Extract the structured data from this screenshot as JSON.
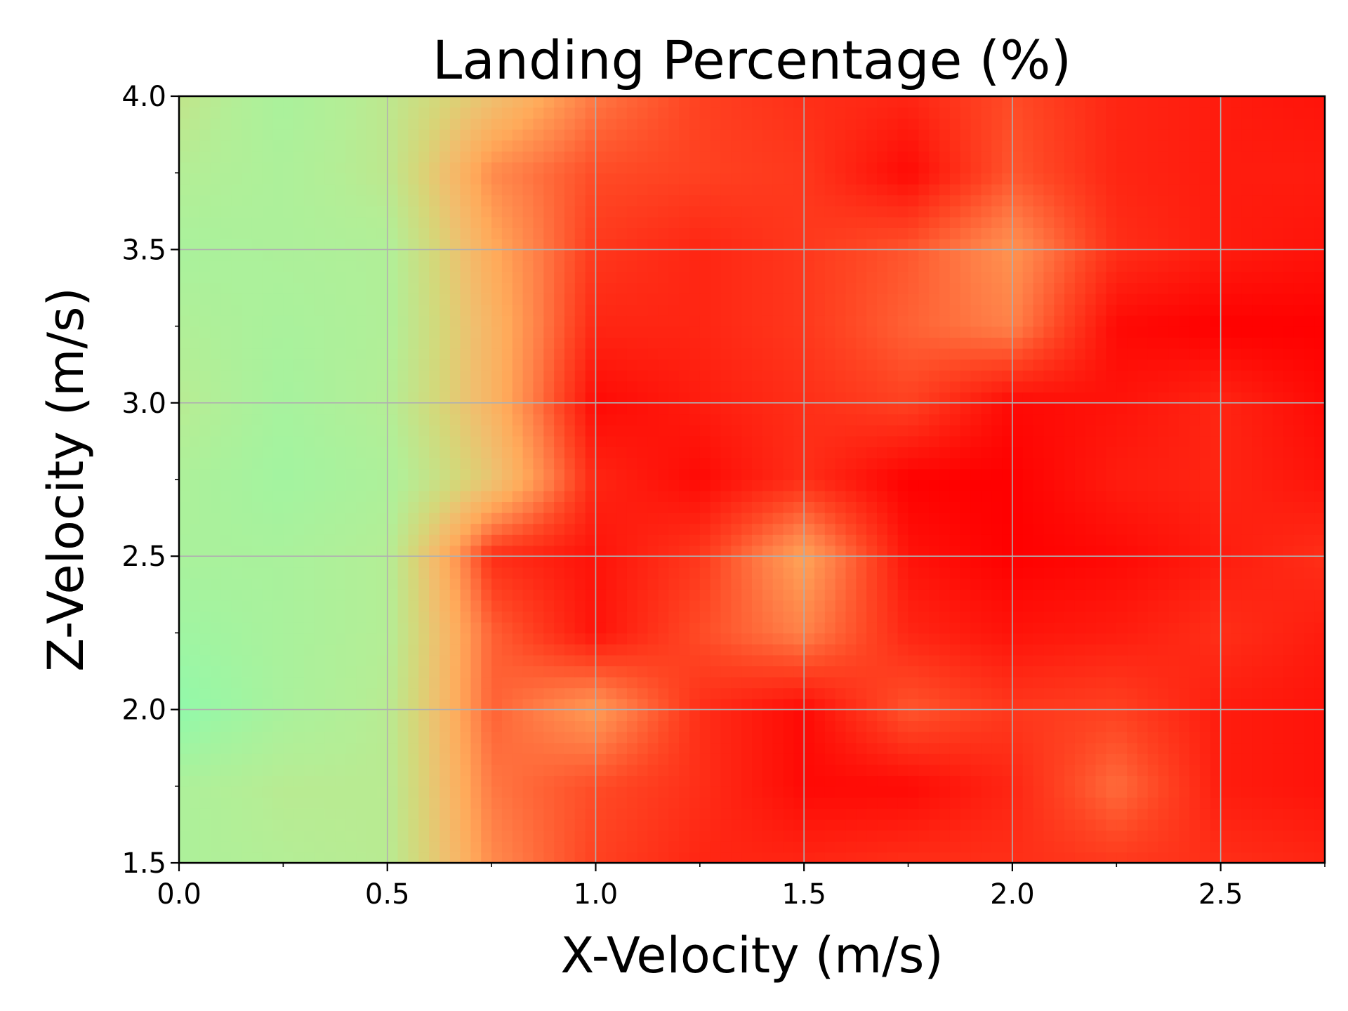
{
  "chart_data": {
    "type": "heatmap",
    "title": "Landing Percentage (%)",
    "xlabel": "X-Velocity (m/s)",
    "ylabel": "Z-Velocity (m/s)",
    "xlim": [
      0.0,
      2.75
    ],
    "ylim": [
      1.5,
      4.0
    ],
    "x_ticks": [
      "0.0",
      "0.5",
      "1.0",
      "1.5",
      "2.0",
      "2.5"
    ],
    "y_ticks": [
      "1.5",
      "2.0",
      "2.5",
      "3.0",
      "3.5",
      "4.0"
    ],
    "x_tick_values": [
      0.0,
      0.5,
      1.0,
      1.5,
      2.0,
      2.5
    ],
    "y_tick_values": [
      1.5,
      2.0,
      2.5,
      3.0,
      3.5,
      4.0
    ],
    "x_minor_tick_values": [
      0.25,
      0.75,
      1.25,
      1.75,
      2.25,
      2.75
    ],
    "y_minor_tick_values": [
      1.75,
      2.25,
      2.75,
      3.25,
      3.75
    ],
    "grid": true,
    "colormap": "rainbow",
    "color_range": [
      0,
      100
    ],
    "colors": {
      "low": "#80ffb4",
      "high": "#ff0000",
      "grid": "#b0b0b0",
      "axes": "#000000"
    },
    "x": [
      0.0,
      0.25,
      0.5,
      0.75,
      1.0,
      1.25,
      1.5,
      1.75,
      2.0,
      2.25,
      2.5,
      2.75
    ],
    "y": [
      1.5,
      1.75,
      2.0,
      2.25,
      2.5,
      2.75,
      3.0,
      3.25,
      3.5,
      3.75,
      4.0
    ],
    "z": [
      [
        26,
        30,
        32,
        72,
        86,
        92,
        92,
        90,
        90,
        88,
        90,
        92
      ],
      [
        26,
        32,
        32,
        76,
        84,
        90,
        98,
        98,
        92,
        78,
        94,
        96
      ],
      [
        10,
        24,
        32,
        80,
        68,
        90,
        98,
        82,
        88,
        86,
        94,
        96
      ],
      [
        18,
        24,
        30,
        80,
        96,
        84,
        74,
        92,
        96,
        94,
        90,
        94
      ],
      [
        24,
        24,
        30,
        90,
        96,
        88,
        66,
        96,
        100,
        98,
        94,
        90
      ],
      [
        26,
        20,
        26,
        52,
        92,
        98,
        90,
        100,
        100,
        94,
        92,
        96
      ],
      [
        32,
        22,
        30,
        60,
        98,
        94,
        90,
        86,
        98,
        96,
        92,
        98
      ],
      [
        28,
        24,
        28,
        60,
        92,
        92,
        88,
        80,
        74,
        98,
        100,
        100
      ],
      [
        24,
        26,
        28,
        64,
        88,
        92,
        88,
        82,
        70,
        90,
        94,
        96
      ],
      [
        30,
        26,
        34,
        72,
        84,
        86,
        88,
        98,
        82,
        92,
        94,
        94
      ],
      [
        36,
        24,
        34,
        54,
        76,
        86,
        90,
        92,
        84,
        92,
        94,
        96
      ]
    ]
  }
}
